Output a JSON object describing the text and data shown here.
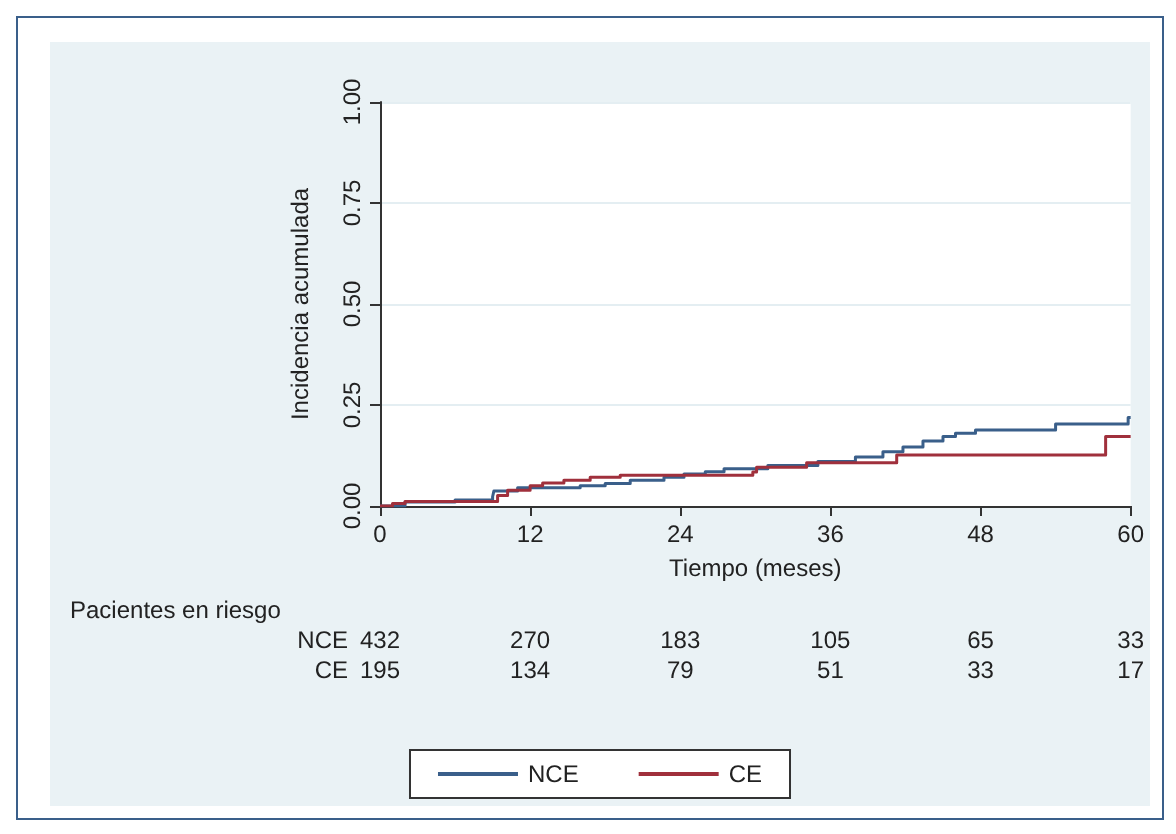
{
  "chart_data": {
    "type": "step",
    "xlabel": "Tiempo (meses)",
    "ylabel": "Incidencia acumulada",
    "xlim": [
      0,
      60
    ],
    "xticks": [
      0,
      12,
      24,
      36,
      48,
      60
    ],
    "ylim": [
      0,
      1
    ],
    "yticks": [
      {
        "value": 0,
        "label": "0.00"
      },
      {
        "value": 0.25,
        "label": "0.25"
      },
      {
        "value": 0.5,
        "label": "0.50"
      },
      {
        "value": 0.75,
        "label": "0.75"
      },
      {
        "value": 1,
        "label": "1.00"
      }
    ],
    "grid": "y",
    "legend": "bottom",
    "line_style": "solid",
    "marker": "none",
    "series": [
      {
        "name": "NCE",
        "color": "#3a5f8a",
        "x": [
          0,
          2,
          6,
          9,
          9.1,
          11,
          16,
          18,
          20,
          22.7,
          24.3,
          26,
          27.5,
          31,
          35,
          38,
          40.2,
          41.8,
          43.4,
          45,
          46,
          47.6,
          54,
          59.8,
          60
        ],
        "values": [
          0,
          0.01,
          0.015,
          0.023,
          0.037,
          0.045,
          0.05,
          0.056,
          0.064,
          0.071,
          0.079,
          0.085,
          0.092,
          0.1,
          0.11,
          0.121,
          0.134,
          0.146,
          0.161,
          0.172,
          0.18,
          0.188,
          0.203,
          0.219,
          0.219
        ]
      },
      {
        "name": "CE",
        "color": "#a0303c",
        "x": [
          0,
          1,
          2,
          9.4,
          10.2,
          12,
          13,
          14.7,
          16.8,
          19.2,
          29.8,
          30.1,
          34.1,
          41.3,
          58,
          60
        ],
        "values": [
          0,
          0.006,
          0.011,
          0.026,
          0.039,
          0.05,
          0.057,
          0.064,
          0.071,
          0.076,
          0.084,
          0.096,
          0.107,
          0.126,
          0.172,
          0.172
        ]
      }
    ],
    "annotations": [
      "Pacientes en riesgo",
      "NCE",
      "432",
      "270",
      "183",
      "105",
      "65",
      "33",
      "CE",
      "195",
      "134",
      "79",
      "51",
      "33",
      "17"
    ]
  }
}
